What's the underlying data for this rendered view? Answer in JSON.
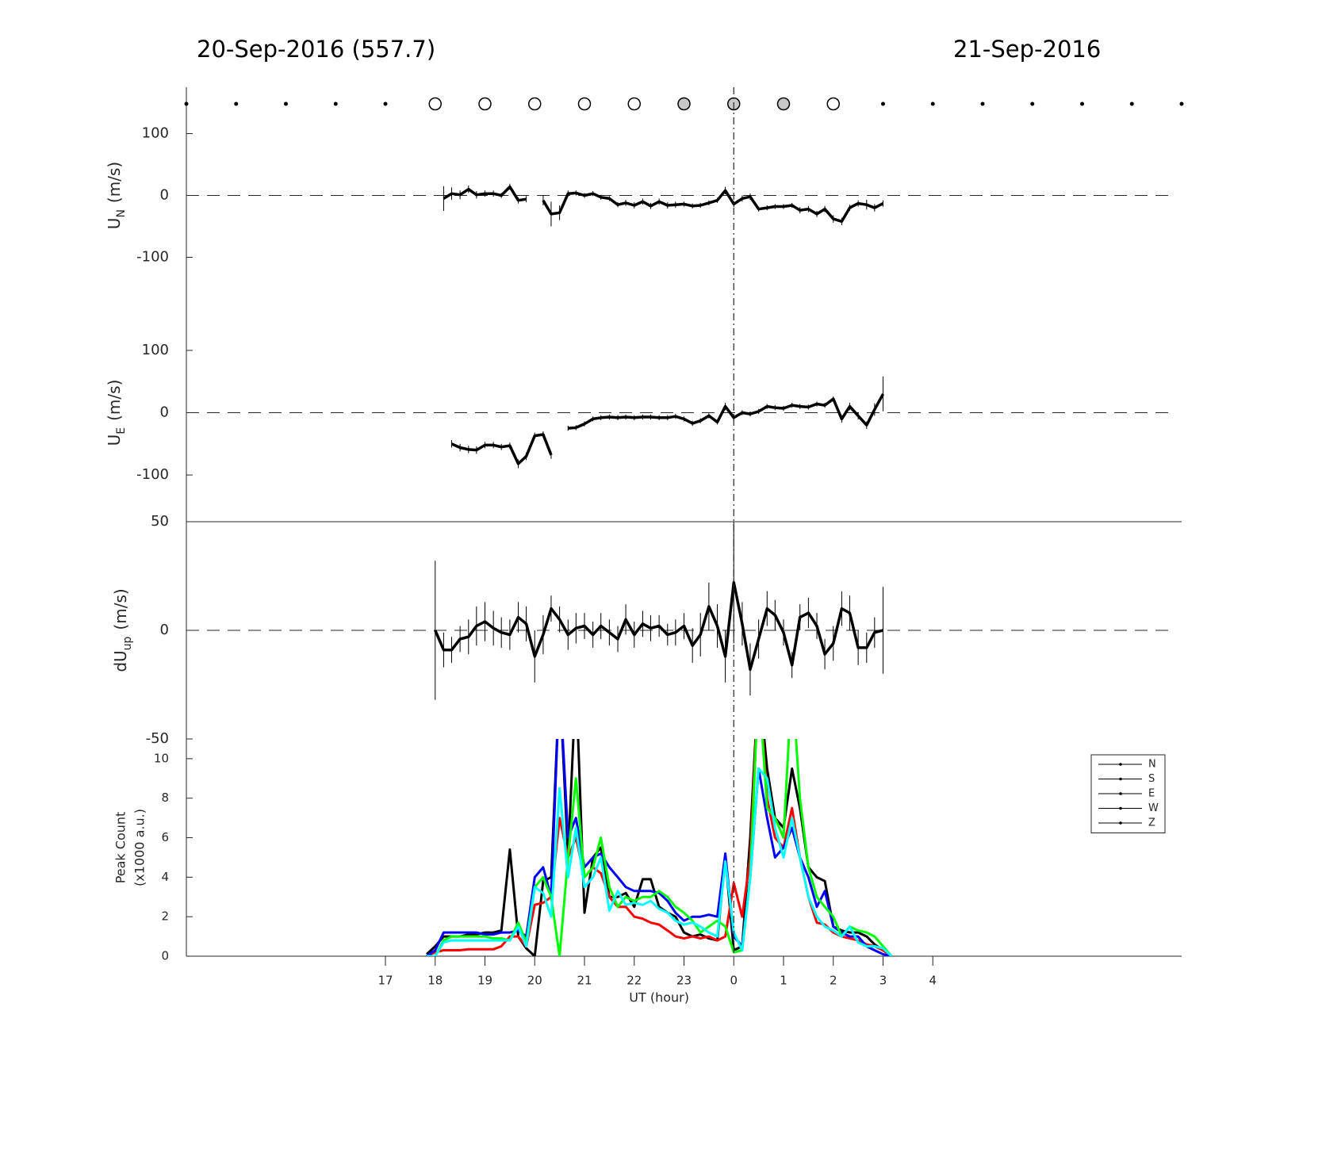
{
  "title_left": "20-Sep-2016 (557.7)",
  "title_right": "21-Sep-2016",
  "chart_data": [
    {
      "type": "line",
      "ylabel": {
        "text": "U",
        "sub": "N",
        "unit": "(m/s)"
      },
      "xlim": [
        13,
        33
      ],
      "ylim": [
        -175,
        175
      ],
      "yticks": [
        -100,
        0,
        100
      ],
      "zero_line": true,
      "markers": {
        "x": [
          13,
          14,
          15,
          16,
          17,
          18,
          19,
          20,
          21,
          22,
          23,
          24,
          25,
          26,
          27,
          28,
          29,
          30,
          31,
          32,
          33
        ],
        "kind": [
          "dot",
          "dot",
          "dot",
          "dot",
          "dot",
          "open",
          "open",
          "open",
          "open",
          "open",
          "gray",
          "gray",
          "gray",
          "open",
          "dot",
          "dot",
          "dot",
          "dot",
          "dot",
          "dot",
          "dot"
        ]
      },
      "x": [
        17.83,
        18,
        18.17,
        18.33,
        18.5,
        18.67,
        18.83,
        19,
        19.17,
        19.33,
        19.5,
        19.67,
        19.83,
        20,
        20.17,
        20.33,
        20.5,
        20.67,
        20.83,
        21,
        21.17,
        21.33,
        21.5,
        21.67,
        21.83,
        22,
        22.17,
        22.33,
        22.5,
        22.67,
        22.83,
        23,
        23.17,
        23.33,
        23.5,
        23.67,
        23.83,
        24,
        24.17,
        24.33,
        24.5,
        24.67,
        24.83,
        25,
        25.17,
        25.33,
        25.5,
        25.67,
        25.83,
        26,
        26.17,
        26.33,
        26.5,
        26.67,
        26.83,
        27,
        27.17
      ],
      "series": [
        {
          "color": "#000000",
          "values": [
            null,
            null,
            -5,
            3,
            1,
            10,
            1,
            3,
            3,
            0,
            14,
            -8,
            -6,
            null,
            -8,
            -30,
            -28,
            3,
            4,
            0,
            3,
            -3,
            -5,
            -15,
            -12,
            -16,
            -10,
            -17,
            -10,
            -16,
            -15,
            -14,
            -17,
            -16,
            -12,
            -8,
            8,
            -14,
            -5,
            -2,
            -22,
            -20,
            -18,
            -18,
            -16,
            -24,
            -22,
            -30,
            -22,
            -38,
            -42,
            -20,
            -13,
            -15,
            -20,
            -13,
            null
          ],
          "errors": [
            null,
            null,
            20,
            10,
            7,
            6,
            6,
            5,
            5,
            4,
            5,
            5,
            5,
            null,
            8,
            20,
            12,
            5,
            4,
            4,
            4,
            4,
            4,
            4,
            5,
            5,
            5,
            5,
            5,
            5,
            5,
            4,
            4,
            4,
            4,
            4,
            6,
            5,
            5,
            5,
            4,
            4,
            4,
            4,
            4,
            5,
            5,
            5,
            5,
            6,
            6,
            5,
            5,
            8,
            6,
            5,
            null
          ]
        }
      ]
    },
    {
      "type": "line",
      "ylabel": {
        "text": "U",
        "sub": "E",
        "unit": "(m/s)"
      },
      "xlim": [
        13,
        33
      ],
      "ylim": [
        -175,
        175
      ],
      "yticks": [
        -100,
        0,
        100
      ],
      "zero_line": true,
      "x": [
        17.83,
        18,
        18.17,
        18.33,
        18.5,
        18.67,
        18.83,
        19,
        19.17,
        19.33,
        19.5,
        19.67,
        19.83,
        20,
        20.17,
        20.33,
        20.5,
        20.67,
        20.83,
        21,
        21.17,
        21.33,
        21.5,
        21.67,
        21.83,
        22,
        22.17,
        22.33,
        22.5,
        22.67,
        22.83,
        23,
        23.17,
        23.33,
        23.5,
        23.67,
        23.83,
        24,
        24.17,
        24.33,
        24.5,
        24.67,
        24.83,
        25,
        25.17,
        25.33,
        25.5,
        25.67,
        25.83,
        26,
        26.17,
        26.33,
        26.5,
        26.67,
        26.83,
        27,
        27.17
      ],
      "series": [
        {
          "color": "#000000",
          "values": [
            null,
            null,
            null,
            -50,
            -56,
            -59,
            -60,
            -52,
            -52,
            -55,
            -53,
            -82,
            -70,
            -37,
            -35,
            -68,
            null,
            -25,
            -24,
            -18,
            -10,
            -8,
            -7,
            -8,
            -7,
            -8,
            -7,
            -7,
            -8,
            -8,
            -6,
            -10,
            -17,
            -13,
            -5,
            -15,
            10,
            -8,
            0,
            -2,
            2,
            10,
            8,
            7,
            12,
            10,
            9,
            14,
            12,
            22,
            -10,
            10,
            -5,
            -20,
            5,
            30,
            null
          ],
          "errors": [
            null,
            null,
            null,
            6,
            6,
            6,
            6,
            5,
            5,
            5,
            5,
            7,
            6,
            5,
            5,
            6,
            null,
            4,
            4,
            4,
            4,
            4,
            4,
            4,
            4,
            4,
            4,
            4,
            4,
            4,
            4,
            4,
            4,
            4,
            4,
            4,
            6,
            5,
            4,
            4,
            4,
            4,
            4,
            4,
            4,
            4,
            4,
            4,
            4,
            4,
            6,
            6,
            6,
            6,
            10,
            28,
            null
          ]
        }
      ]
    },
    {
      "type": "line",
      "ylabel": {
        "text": "dU",
        "sub": "up",
        "unit": "(m/s)"
      },
      "xlim": [
        13,
        33
      ],
      "ylim": [
        -50,
        50
      ],
      "yticks": [
        -50,
        0,
        50
      ],
      "zero_line": true,
      "x": [
        17.83,
        18,
        18.17,
        18.33,
        18.5,
        18.67,
        18.83,
        19,
        19.17,
        19.33,
        19.5,
        19.67,
        19.83,
        20,
        20.17,
        20.33,
        20.5,
        20.67,
        20.83,
        21,
        21.17,
        21.33,
        21.5,
        21.67,
        21.83,
        22,
        22.17,
        22.33,
        22.5,
        22.67,
        22.83,
        23,
        23.17,
        23.33,
        23.5,
        23.67,
        23.83,
        24,
        24.17,
        24.33,
        24.5,
        24.67,
        24.83,
        25,
        25.17,
        25.33,
        25.5,
        25.67,
        25.83,
        26,
        26.17,
        26.33,
        26.5,
        26.67,
        26.83,
        27,
        27.17
      ],
      "series": [
        {
          "color": "#000000",
          "values": [
            null,
            0,
            -9,
            -9,
            -4,
            -3,
            2,
            4,
            1,
            -1,
            -2,
            6,
            3,
            -12,
            -2,
            10,
            5,
            -2,
            1,
            2,
            -2,
            2,
            -1,
            -4,
            5,
            -2,
            3,
            1,
            2,
            -2,
            -1,
            2,
            -7,
            -2,
            11,
            2,
            -12,
            22,
            3,
            -18,
            -4,
            10,
            7,
            -1,
            -16,
            6,
            8,
            2,
            -11,
            -6,
            10,
            8,
            -8,
            -8,
            -1,
            0,
            null
          ],
          "errors": [
            null,
            32,
            8,
            6,
            6,
            8,
            9,
            9,
            8,
            7,
            7,
            7,
            8,
            12,
            9,
            6,
            6,
            7,
            7,
            6,
            6,
            6,
            6,
            6,
            7,
            6,
            6,
            6,
            5,
            5,
            6,
            6,
            8,
            10,
            11,
            10,
            12,
            28,
            10,
            12,
            9,
            8,
            7,
            6,
            6,
            6,
            7,
            6,
            7,
            8,
            8,
            8,
            8,
            7,
            7,
            20,
            null
          ]
        }
      ]
    },
    {
      "type": "line",
      "ylabel": [
        "Peak Count",
        "(x1000 a.u.)"
      ],
      "xlabel": "UT (hour)",
      "xlim": [
        13,
        33
      ],
      "ylim": [
        0,
        11
      ],
      "yticks": [
        0,
        2,
        4,
        6,
        8,
        10
      ],
      "legend": "upper right",
      "xticks": [
        17,
        18,
        19,
        20,
        21,
        22,
        23,
        {
          "value": 24,
          "label": "0"
        },
        {
          "value": 25,
          "label": "1"
        },
        {
          "value": 26,
          "label": "2"
        },
        {
          "value": 27,
          "label": "3"
        },
        {
          "value": 28,
          "label": "4"
        }
      ],
      "x": [
        17.83,
        18,
        18.17,
        18.33,
        18.5,
        18.67,
        18.83,
        19,
        19.17,
        19.33,
        19.5,
        19.67,
        19.83,
        20,
        20.17,
        20.33,
        20.5,
        20.67,
        20.83,
        21,
        21.17,
        21.33,
        21.5,
        21.67,
        21.83,
        22,
        22.17,
        22.33,
        22.5,
        22.67,
        22.83,
        23,
        23.17,
        23.33,
        23.5,
        23.67,
        23.83,
        24,
        24.17,
        24.33,
        24.5,
        24.67,
        24.83,
        25,
        25.17,
        25.33,
        25.5,
        25.67,
        25.83,
        26,
        26.17,
        26.33,
        26.5,
        26.67,
        26.83,
        27,
        27.17
      ],
      "series": [
        {
          "name": "N",
          "color": "#000000",
          "values": [
            0.1,
            0.5,
            1.0,
            1.0,
            1.0,
            1.1,
            1.1,
            1.2,
            1.2,
            1.3,
            5.4,
            1.0,
            0.4,
            0.0,
            3.8,
            4.0,
            14,
            5.0,
            14,
            2.2,
            5.0,
            5.5,
            3.0,
            3.0,
            3.2,
            2.5,
            3.9,
            3.9,
            2.5,
            2.2,
            2.0,
            1.2,
            1.0,
            1.1,
            0.9,
            0.8,
            5.0,
            0.3,
            0.5,
            6.0,
            14,
            9.5,
            7.0,
            6.5,
            9.5,
            7.5,
            4.5,
            4.0,
            3.8,
            1.5,
            1.3,
            1.2,
            1.2,
            1.0,
            0.6,
            0.3,
            0.0
          ]
        },
        {
          "name": "S",
          "color": "#ff0000",
          "values": [
            0.0,
            0.2,
            0.3,
            0.3,
            0.3,
            0.35,
            0.35,
            0.35,
            0.35,
            0.5,
            1.0,
            1.0,
            0.5,
            2.6,
            2.7,
            3.0,
            7.0,
            5.0,
            6.0,
            4.0,
            4.5,
            4.2,
            3.0,
            2.5,
            2.5,
            2.0,
            1.9,
            1.7,
            1.6,
            1.3,
            1.0,
            0.9,
            1.0,
            0.9,
            1.0,
            0.8,
            1.0,
            3.7,
            2.0,
            5.0,
            14,
            8.0,
            6.0,
            5.5,
            7.5,
            5.0,
            3.0,
            1.7,
            1.6,
            1.2,
            1.0,
            0.9,
            0.8,
            0.6,
            0.5,
            0.3,
            0.0
          ]
        },
        {
          "name": "E",
          "color": "#0000ff",
          "values": [
            0.0,
            0.3,
            1.2,
            1.2,
            1.2,
            1.2,
            1.2,
            1.1,
            1.1,
            1.2,
            1.2,
            1.3,
            1.0,
            4.0,
            4.5,
            3.0,
            14,
            6.0,
            7.0,
            4.5,
            5.0,
            5.2,
            4.5,
            4.0,
            3.5,
            3.3,
            3.3,
            3.3,
            3.2,
            2.8,
            2.2,
            1.8,
            2.0,
            2.0,
            2.1,
            2.0,
            5.2,
            1.0,
            0.5,
            4.0,
            9.5,
            7.0,
            5.0,
            5.5,
            6.5,
            5.0,
            4.0,
            2.5,
            3.3,
            1.5,
            1.2,
            1.0,
            1.0,
            0.5,
            0.3,
            0.1,
            0.0
          ]
        },
        {
          "name": "W",
          "color": "#00ff00",
          "values": [
            0.0,
            0.0,
            0.8,
            1.0,
            1.0,
            1.0,
            1.0,
            1.0,
            0.9,
            0.9,
            0.8,
            1.7,
            0.7,
            3.5,
            4.0,
            3.0,
            0.0,
            5.0,
            9.0,
            4.0,
            4.5,
            6.0,
            3.5,
            2.5,
            3.0,
            2.8,
            3.0,
            3.0,
            3.3,
            3.0,
            2.5,
            2.2,
            1.8,
            1.2,
            1.5,
            1.8,
            1.5,
            0.2,
            0.3,
            4.0,
            14,
            7.5,
            7.0,
            6.0,
            14,
            8.0,
            4.5,
            3.0,
            2.5,
            2.0,
            1.0,
            1.5,
            1.3,
            1.2,
            1.0,
            0.5,
            0.0
          ]
        },
        {
          "name": "Z",
          "color": "#00ffff",
          "values": [
            0.0,
            0.0,
            0.7,
            0.8,
            0.8,
            0.8,
            0.8,
            0.8,
            0.8,
            0.8,
            0.8,
            1.5,
            0.5,
            3.5,
            3.2,
            2.0,
            8.5,
            4.0,
            6.5,
            3.5,
            4.0,
            5.0,
            2.3,
            3.3,
            2.6,
            2.7,
            2.6,
            2.8,
            2.4,
            2.2,
            1.8,
            1.6,
            1.7,
            1.5,
            1.2,
            1.0,
            4.8,
            1.2,
            0.3,
            4.0,
            9.5,
            9.0,
            6.5,
            5.0,
            7.0,
            5.0,
            3.0,
            2.0,
            1.5,
            1.3,
            1.0,
            1.5,
            0.7,
            0.5,
            0.5,
            0.4,
            0.0
          ]
        }
      ]
    }
  ]
}
